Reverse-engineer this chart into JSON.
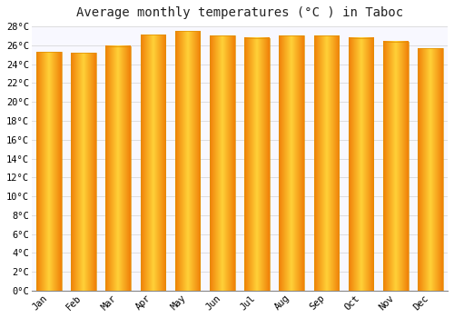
{
  "title": "Average monthly temperatures (°C ) in Taboc",
  "months": [
    "Jan",
    "Feb",
    "Mar",
    "Apr",
    "May",
    "Jun",
    "Jul",
    "Aug",
    "Sep",
    "Oct",
    "Nov",
    "Dec"
  ],
  "values": [
    25.3,
    25.2,
    25.9,
    27.1,
    27.5,
    27.0,
    26.8,
    27.0,
    27.0,
    26.8,
    26.4,
    25.7
  ],
  "ylim": [
    0,
    28
  ],
  "yticks": [
    0,
    2,
    4,
    6,
    8,
    10,
    12,
    14,
    16,
    18,
    20,
    22,
    24,
    26,
    28
  ],
  "bar_color_center": "#FFD050",
  "bar_color_edge": "#F08000",
  "background_color": "#FFFFFF",
  "plot_bg_color": "#F8F8FF",
  "grid_color": "#DDDDDD",
  "title_fontsize": 10,
  "tick_fontsize": 7.5,
  "title_font": "monospace",
  "tick_font": "monospace"
}
